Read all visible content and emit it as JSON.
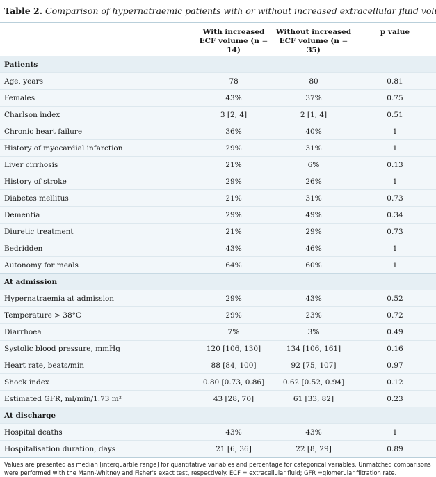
{
  "caption": {
    "label": "Table 2.",
    "text": "Comparison of hypernatraemic patients with or without increased extracellular fluid volume"
  },
  "columns": [
    "",
    "With increased ECF volume (n = 14)",
    "Without increased ECF volume (n = 35)",
    "p value"
  ],
  "sections": [
    {
      "title": "Patients",
      "rows": [
        {
          "label": "Age, years",
          "with": "78",
          "without": "80",
          "p": "0.81"
        },
        {
          "label": "Females",
          "with": "43%",
          "without": "37%",
          "p": "0.75"
        },
        {
          "label": "Charlson index",
          "with": "3 [2, 4]",
          "without": "2 [1, 4]",
          "p": "0.51"
        },
        {
          "label": "Chronic heart failure",
          "with": "36%",
          "without": "40%",
          "p": "1"
        },
        {
          "label": "History of myocardial infarction",
          "with": "29%",
          "without": "31%",
          "p": "1"
        },
        {
          "label": "Liver cirrhosis",
          "with": "21%",
          "without": "6%",
          "p": "0.13"
        },
        {
          "label": "History of stroke",
          "with": "29%",
          "without": "26%",
          "p": "1"
        },
        {
          "label": "Diabetes mellitus",
          "with": "21%",
          "without": "31%",
          "p": "0.73"
        },
        {
          "label": "Dementia",
          "with": "29%",
          "without": "49%",
          "p": "0.34"
        },
        {
          "label": "Diuretic treatment",
          "with": "21%",
          "without": "29%",
          "p": "0.73"
        },
        {
          "label": "Bedridden",
          "with": "43%",
          "without": "46%",
          "p": "1"
        },
        {
          "label": "Autonomy for meals",
          "with": "64%",
          "without": "60%",
          "p": "1"
        }
      ]
    },
    {
      "title": "At admission",
      "rows": [
        {
          "label": "Hypernatraemia at admission",
          "with": "29%",
          "without": "43%",
          "p": "0.52"
        },
        {
          "label": "Temperature > 38°C",
          "with": "29%",
          "without": "23%",
          "p": "0.72"
        },
        {
          "label": "Diarrhoea",
          "with": "7%",
          "without": "3%",
          "p": "0.49"
        },
        {
          "label": "Systolic blood pressure, mmHg",
          "with": "120 [106, 130]",
          "without": "134 [106, 161]",
          "p": "0.16"
        },
        {
          "label": "Heart rate, beats/min",
          "with": "88 [84, 100]",
          "without": "92 [75, 107]",
          "p": "0.97"
        },
        {
          "label": "Shock index",
          "with": "0.80 [0.73, 0.86]",
          "without": "0.62 [0.52, 0.94]",
          "p": "0.12"
        },
        {
          "label": "Estimated GFR, ml/min/1.73 m²",
          "with": "43 [28, 70]",
          "without": "61 [33, 82]",
          "p": "0.23"
        }
      ]
    },
    {
      "title": "At discharge",
      "rows": [
        {
          "label": "Hospital deaths",
          "with": "43%",
          "without": "43%",
          "p": "1"
        },
        {
          "label": "Hospitalisation duration, days",
          "with": "21 [6, 36]",
          "without": "22 [8, 29]",
          "p": "0.89"
        }
      ]
    }
  ],
  "footnote": "Values are presented as median [interquartile range] for quantitative variables and percentage for categorical variables. Unmatched comparisons were performed with the Mann-Whitney and Fisher's exact test, respectively. ECF = extracellular fluid; GFR =glomerular filtration rate.",
  "colors": {
    "section_bg": "#e6eff4",
    "row_bg": "#f2f7fa",
    "rule": "#b9cfda"
  }
}
